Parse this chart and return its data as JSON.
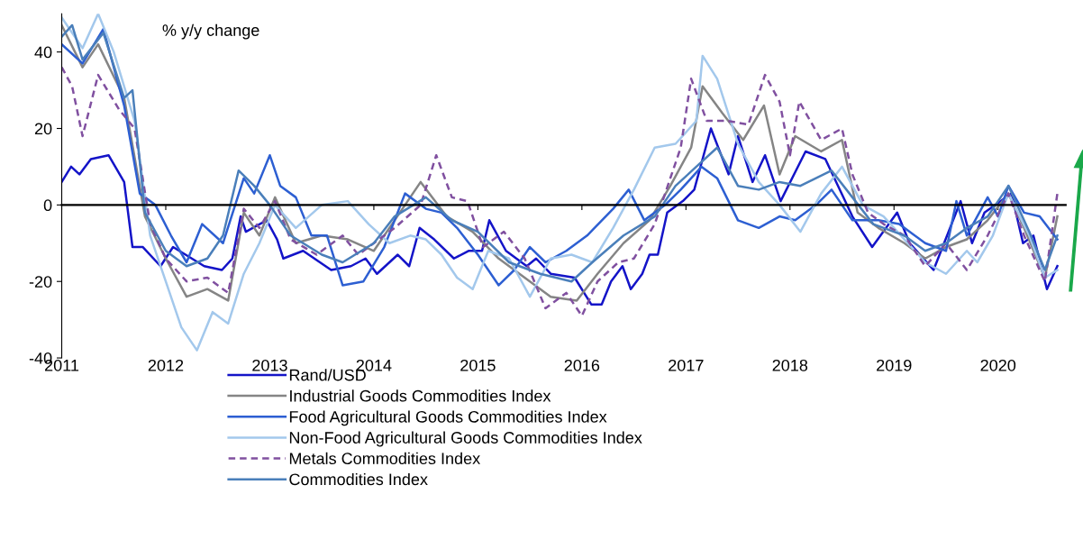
{
  "chart_data": {
    "type": "line",
    "ylabel": "% y/y change",
    "xlim": [
      2011,
      2020.65
    ],
    "xticks": [
      2011,
      2012,
      2013,
      2014,
      2015,
      2016,
      2017,
      2018,
      2019,
      2020
    ],
    "ylim": [
      -40,
      50
    ],
    "yticks": [
      -40,
      -20,
      0,
      20,
      40
    ],
    "legend": "bottom",
    "marker": "none",
    "series": [
      {
        "name": "Rand/USD",
        "color": "#1414c8",
        "line_style": "solid",
        "x": [
          2011.0,
          2011.09,
          2011.17,
          2011.28,
          2011.45,
          2011.6,
          2011.68,
          2011.78,
          2011.95,
          2012.07,
          2012.37,
          2012.54,
          2012.64,
          2012.72,
          2012.77,
          2012.97,
          2013.07,
          2013.13,
          2013.32,
          2013.59,
          2013.78,
          2013.92,
          2014.03,
          2014.23,
          2014.34,
          2014.44,
          2014.58,
          2014.77,
          2014.91,
          2015.04,
          2015.11,
          2015.27,
          2015.47,
          2015.56,
          2015.7,
          2015.93,
          2016.09,
          2016.19,
          2016.28,
          2016.39,
          2016.47,
          2016.58,
          2016.65,
          2016.73,
          2016.82,
          2016.97,
          2017.08,
          2017.24,
          2017.41,
          2017.5,
          2017.64,
          2017.76,
          2017.91,
          2018.15,
          2018.34,
          2018.6,
          2018.79,
          2019.03,
          2019.15,
          2019.38,
          2019.64,
          2019.75,
          2019.87,
          2020.13,
          2020.24,
          2020.34,
          2020.47,
          2020.57
        ],
        "values": [
          6,
          10,
          8,
          12,
          13,
          6,
          -11,
          -11,
          -16,
          -11,
          -16,
          -17,
          -14,
          -3,
          -7,
          -4,
          -9,
          -14,
          -12,
          -17,
          -16,
          -14,
          -18,
          -13,
          -16,
          -6,
          -9,
          -14,
          -12,
          -12,
          -4,
          -12,
          -16,
          -14,
          -18,
          -19,
          -26,
          -26,
          -20,
          -16,
          -22,
          -18,
          -13,
          -13,
          -2,
          1,
          4,
          20,
          8,
          18,
          6,
          13,
          1,
          14,
          12,
          -3,
          -11,
          -2,
          -10,
          -17,
          1,
          -10,
          -2,
          3,
          -10,
          -8,
          -22,
          -16
        ]
      },
      {
        "name": "Industrial Goods Commodities Index",
        "color": "#858585",
        "line_style": "solid",
        "x": [
          2011.0,
          2011.2,
          2011.35,
          2011.6,
          2011.8,
          2012.0,
          2012.2,
          2012.4,
          2012.6,
          2012.75,
          2012.9,
          2013.05,
          2013.25,
          2013.5,
          2013.75,
          2014.0,
          2014.2,
          2014.45,
          2014.7,
          2014.95,
          2015.2,
          2015.45,
          2015.7,
          2015.95,
          2016.15,
          2016.4,
          2016.65,
          2016.85,
          2017.05,
          2017.16,
          2017.35,
          2017.55,
          2017.75,
          2017.9,
          2018.05,
          2018.3,
          2018.5,
          2018.65,
          2018.85,
          2019.1,
          2019.3,
          2019.5,
          2019.7,
          2019.9,
          2020.1,
          2020.25,
          2020.45,
          2020.57
        ],
        "values": [
          47,
          36,
          42,
          28,
          -3,
          -14,
          -24,
          -22,
          -25,
          -2,
          -8,
          2,
          -10,
          -8,
          -9,
          -12,
          -4,
          6,
          -3,
          -7,
          -14,
          -19,
          -24,
          -25,
          -18,
          -10,
          -4,
          5,
          15,
          31,
          24,
          17,
          26,
          8,
          18,
          14,
          17,
          -2,
          -6,
          -10,
          -14,
          -11,
          -9,
          -4,
          3,
          -6,
          -19,
          -3
        ]
      },
      {
        "name": "Food Agricultural Goods Commodities Index",
        "color": "#2d5fd2",
        "line_style": "solid",
        "x": [
          2011.0,
          2011.2,
          2011.4,
          2011.6,
          2011.75,
          2011.9,
          2012.05,
          2012.2,
          2012.35,
          2012.55,
          2012.75,
          2012.85,
          2013.0,
          2013.1,
          2013.25,
          2013.4,
          2013.55,
          2013.7,
          2013.9,
          2014.1,
          2014.3,
          2014.5,
          2014.65,
          2014.8,
          2015.0,
          2015.2,
          2015.35,
          2015.5,
          2015.65,
          2015.85,
          2016.05,
          2016.3,
          2016.45,
          2016.6,
          2016.8,
          2016.95,
          2017.15,
          2017.3,
          2017.5,
          2017.7,
          2017.9,
          2018.05,
          2018.25,
          2018.4,
          2018.6,
          2018.85,
          2019.05,
          2019.3,
          2019.5,
          2019.6,
          2019.7,
          2019.9,
          2020.0,
          2020.1,
          2020.25,
          2020.4,
          2020.57
        ],
        "values": [
          42,
          37,
          46,
          26,
          3,
          0,
          -8,
          -15,
          -5,
          -10,
          7,
          3,
          13,
          5,
          2,
          -8,
          -8,
          -21,
          -20,
          -11,
          3,
          -1,
          -2,
          -6,
          -13,
          -21,
          -17,
          -11,
          -15,
          -12,
          -8,
          -1,
          4,
          -4,
          0,
          4,
          10,
          7,
          -4,
          -6,
          -3,
          -4,
          0,
          4,
          -4,
          -4,
          -5,
          -10,
          -12,
          1,
          -8,
          2,
          -3,
          5,
          -2,
          -3,
          -9
        ]
      },
      {
        "name": "Non-Food Agricultural Goods Commodities Index",
        "color": "#a3c8ec",
        "line_style": "solid",
        "x": [
          2011.0,
          2011.2,
          2011.35,
          2011.5,
          2011.7,
          2011.85,
          2012.0,
          2012.15,
          2012.3,
          2012.45,
          2012.6,
          2012.75,
          2012.9,
          2013.05,
          2013.25,
          2013.5,
          2013.75,
          2013.95,
          2014.15,
          2014.35,
          2014.5,
          2014.65,
          2014.8,
          2014.95,
          2015.1,
          2015.3,
          2015.5,
          2015.7,
          2015.9,
          2016.1,
          2016.3,
          2016.5,
          2016.7,
          2016.9,
          2017.1,
          2017.16,
          2017.3,
          2017.5,
          2017.7,
          2017.9,
          2018.1,
          2018.3,
          2018.5,
          2018.7,
          2018.9,
          2019.1,
          2019.3,
          2019.5,
          2019.7,
          2019.8,
          2019.95,
          2020.1,
          2020.3,
          2020.45,
          2020.57
        ],
        "values": [
          49,
          41,
          50,
          40,
          22,
          -8,
          -20,
          -32,
          -38,
          -28,
          -31,
          -18,
          -10,
          0,
          -6,
          0,
          1,
          -5,
          -10,
          -8,
          -9,
          -13,
          -19,
          -22,
          -12,
          -14,
          -24,
          -14,
          -13,
          -15,
          -6,
          4,
          15,
          16,
          22,
          39,
          33,
          16,
          6,
          0,
          -7,
          3,
          10,
          0,
          -3,
          -9,
          -15,
          -18,
          -12,
          -15,
          -8,
          3,
          -8,
          -19,
          -17
        ]
      },
      {
        "name": "Metals Commodities Index",
        "color": "#8050a0",
        "line_style": "dashed",
        "x": [
          2011.0,
          2011.1,
          2011.2,
          2011.35,
          2011.55,
          2011.7,
          2011.85,
          2012.0,
          2012.2,
          2012.4,
          2012.6,
          2012.75,
          2012.9,
          2013.05,
          2013.2,
          2013.45,
          2013.7,
          2013.85,
          2014.0,
          2014.2,
          2014.45,
          2014.6,
          2014.75,
          2014.9,
          2015.05,
          2015.25,
          2015.45,
          2015.65,
          2015.85,
          2016.0,
          2016.15,
          2016.35,
          2016.5,
          2016.7,
          2016.95,
          2017.05,
          2017.2,
          2017.4,
          2017.6,
          2017.76,
          2017.9,
          2018.0,
          2018.09,
          2018.3,
          2018.5,
          2018.6,
          2018.75,
          2018.9,
          2019.1,
          2019.3,
          2019.5,
          2019.7,
          2019.9,
          2020.1,
          2020.25,
          2020.45,
          2020.57
        ],
        "values": [
          36,
          31,
          18,
          34,
          25,
          20,
          -5,
          -14,
          -20,
          -19,
          -23,
          -1,
          -6,
          1,
          -9,
          -13,
          -8,
          -13,
          -10,
          -6,
          0,
          13,
          2,
          1,
          -11,
          -7,
          -14,
          -27,
          -23,
          -29,
          -20,
          -15,
          -14,
          -5,
          15,
          33,
          22,
          22,
          21,
          34,
          27,
          13,
          27,
          17,
          20,
          8,
          -2,
          -5,
          -8,
          -16,
          -10,
          -17,
          -8,
          3,
          -8,
          -20,
          3
        ]
      },
      {
        "name": "Commodities Index",
        "color": "#4a7fba",
        "line_style": "solid",
        "x": [
          2011.0,
          2011.1,
          2011.2,
          2011.4,
          2011.6,
          2011.68,
          2011.8,
          2012.0,
          2012.2,
          2012.4,
          2012.55,
          2012.7,
          2012.85,
          2013.0,
          2013.2,
          2013.5,
          2013.7,
          2014.0,
          2014.2,
          2014.5,
          2014.75,
          2015.0,
          2015.3,
          2015.6,
          2015.9,
          2016.1,
          2016.4,
          2016.7,
          2016.9,
          2017.1,
          2017.3,
          2017.5,
          2017.7,
          2017.9,
          2018.1,
          2018.4,
          2018.6,
          2018.8,
          2019.1,
          2019.3,
          2019.5,
          2019.7,
          2019.9,
          2020.1,
          2020.3,
          2020.45,
          2020.57
        ],
        "values": [
          44,
          47,
          38,
          45,
          28,
          30,
          -2,
          -12,
          -16,
          -14,
          -8,
          9,
          5,
          0,
          -8,
          -13,
          -15,
          -10,
          -3,
          2,
          -4,
          -7,
          -15,
          -18,
          -20,
          -15,
          -8,
          -3,
          5,
          10,
          15,
          5,
          4,
          6,
          5,
          9,
          2,
          -5,
          -8,
          -12,
          -10,
          -6,
          -3,
          5,
          -7,
          -17,
          -8
        ]
      }
    ]
  }
}
